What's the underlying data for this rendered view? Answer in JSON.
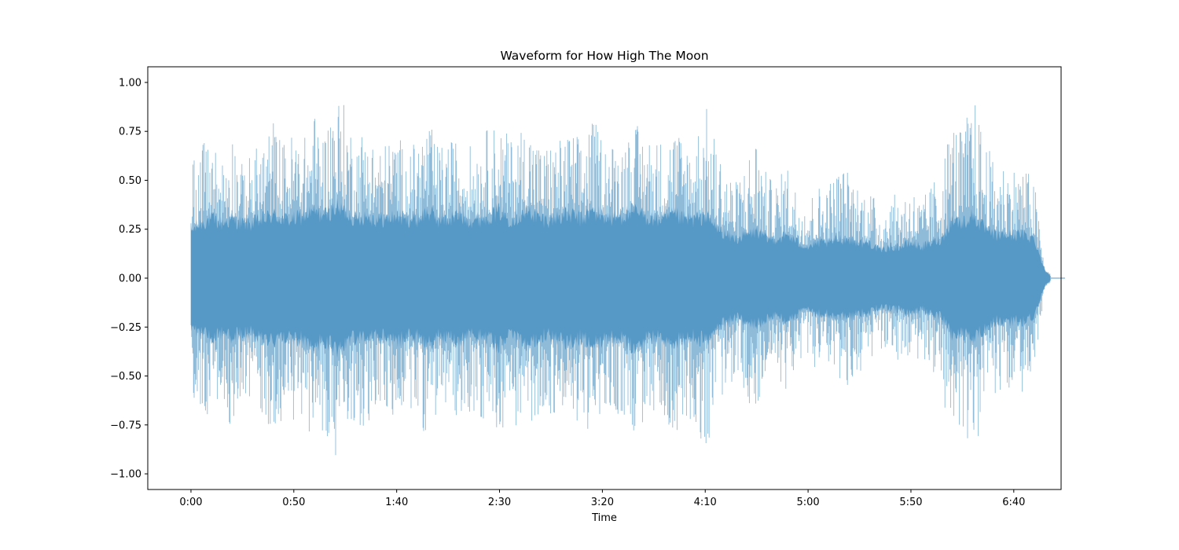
{
  "chart_data": {
    "type": "area",
    "title": "Waveform for How High The Moon",
    "xlabel": "Time",
    "ylabel": "",
    "x_unit": "seconds",
    "xlim": [
      -21,
      423
    ],
    "ylim": [
      -1.08,
      1.08
    ],
    "x_ticks": [
      {
        "value": 0,
        "label": "0:00"
      },
      {
        "value": 50,
        "label": "0:50"
      },
      {
        "value": 100,
        "label": "1:40"
      },
      {
        "value": 150,
        "label": "2:30"
      },
      {
        "value": 200,
        "label": "3:20"
      },
      {
        "value": 250,
        "label": "4:10"
      },
      {
        "value": 300,
        "label": "5:00"
      },
      {
        "value": 350,
        "label": "5:50"
      },
      {
        "value": 400,
        "label": "6:40"
      }
    ],
    "y_ticks": [
      {
        "value": 1.0,
        "label": "1.00"
      },
      {
        "value": 0.75,
        "label": "0.75"
      },
      {
        "value": 0.5,
        "label": "0.50"
      },
      {
        "value": 0.25,
        "label": "0.25"
      },
      {
        "value": 0.0,
        "label": "0.00"
      },
      {
        "value": -0.25,
        "label": "−0.25"
      },
      {
        "value": -0.5,
        "label": "−0.50"
      },
      {
        "value": -0.75,
        "label": "−0.75"
      },
      {
        "value": -1.0,
        "label": "−1.00"
      }
    ],
    "series_color": "#1f77b4",
    "fill_opacity": 0.5,
    "grid": false,
    "envelope": {
      "time": [
        0,
        5,
        10,
        15,
        20,
        25,
        30,
        35,
        40,
        45,
        50,
        55,
        60,
        65,
        70,
        75,
        80,
        85,
        90,
        95,
        100,
        105,
        110,
        115,
        120,
        125,
        130,
        135,
        140,
        145,
        150,
        155,
        160,
        165,
        170,
        175,
        180,
        185,
        190,
        195,
        200,
        205,
        210,
        215,
        220,
        225,
        230,
        235,
        240,
        245,
        250,
        255,
        260,
        265,
        270,
        275,
        280,
        285,
        290,
        295,
        300,
        305,
        310,
        315,
        320,
        325,
        330,
        335,
        340,
        345,
        350,
        355,
        360,
        365,
        370,
        375,
        380,
        385,
        390,
        395,
        400,
        405,
        410,
        415,
        418
      ],
      "peak": [
        0.65,
        0.68,
        0.72,
        0.62,
        0.78,
        0.58,
        0.65,
        0.72,
        0.82,
        0.7,
        0.76,
        0.72,
        0.85,
        0.76,
        0.98,
        0.88,
        0.72,
        0.8,
        0.68,
        0.7,
        0.76,
        0.64,
        0.72,
        0.82,
        0.68,
        0.7,
        0.72,
        0.68,
        0.72,
        0.78,
        0.8,
        0.72,
        0.78,
        0.8,
        0.68,
        0.7,
        0.72,
        0.76,
        0.72,
        0.82,
        0.74,
        0.7,
        0.72,
        0.8,
        0.76,
        0.72,
        0.72,
        0.8,
        0.72,
        0.74,
        0.9,
        0.72,
        0.58,
        0.5,
        0.62,
        0.76,
        0.52,
        0.5,
        0.6,
        0.44,
        0.42,
        0.48,
        0.5,
        0.58,
        0.56,
        0.48,
        0.46,
        0.36,
        0.42,
        0.44,
        0.48,
        0.4,
        0.48,
        0.6,
        0.84,
        0.75,
        0.95,
        0.76,
        0.6,
        0.6,
        0.58,
        0.58,
        0.5,
        0.05,
        0.02
      ],
      "body": [
        0.24,
        0.28,
        0.3,
        0.28,
        0.3,
        0.28,
        0.28,
        0.3,
        0.32,
        0.3,
        0.3,
        0.32,
        0.34,
        0.32,
        0.36,
        0.34,
        0.3,
        0.32,
        0.3,
        0.3,
        0.32,
        0.3,
        0.3,
        0.34,
        0.3,
        0.3,
        0.32,
        0.3,
        0.3,
        0.32,
        0.34,
        0.3,
        0.32,
        0.34,
        0.3,
        0.3,
        0.32,
        0.32,
        0.3,
        0.34,
        0.32,
        0.3,
        0.32,
        0.34,
        0.32,
        0.3,
        0.3,
        0.32,
        0.3,
        0.3,
        0.32,
        0.26,
        0.22,
        0.2,
        0.22,
        0.24,
        0.2,
        0.2,
        0.22,
        0.18,
        0.16,
        0.18,
        0.18,
        0.2,
        0.2,
        0.18,
        0.18,
        0.14,
        0.16,
        0.16,
        0.18,
        0.16,
        0.18,
        0.2,
        0.3,
        0.28,
        0.32,
        0.26,
        0.22,
        0.22,
        0.22,
        0.22,
        0.2,
        0.04,
        0.01
      ]
    }
  }
}
